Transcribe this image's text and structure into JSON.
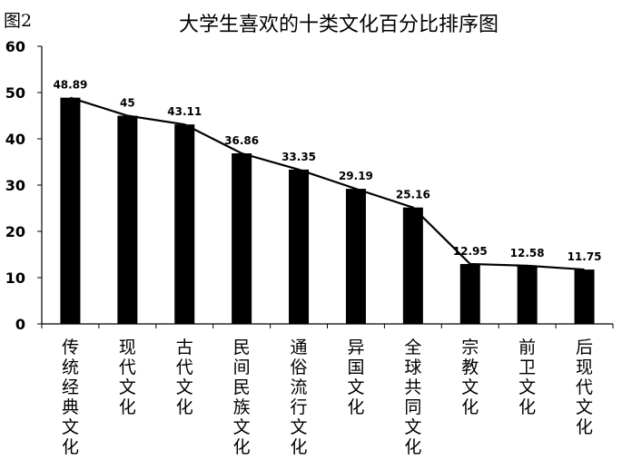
{
  "figure_label": "图2",
  "chart_data": {
    "type": "bar",
    "title": "大学生喜欢的十类文化百分比排序图",
    "categories": [
      "传统经典文化",
      "现代文化",
      "古代文化",
      "民间民族文化",
      "通俗流行文化",
      "异国文化",
      "全球共同文化",
      "宗教文化",
      "前卫文化",
      "后现代文化"
    ],
    "values": [
      48.89,
      45,
      43.11,
      36.86,
      33.35,
      29.19,
      25.16,
      12.95,
      12.58,
      11.75
    ],
    "value_labels": [
      "48.89",
      "45",
      "43.11",
      "36.86",
      "33.35",
      "29.19",
      "25.16",
      "12.95",
      "12.58",
      "11.75"
    ],
    "yticks": [
      "0",
      "10",
      "20",
      "30",
      "40",
      "50",
      "60"
    ],
    "ylim": [
      0,
      60
    ],
    "overlay_line": true,
    "grid": false,
    "legend": "none",
    "colors": {
      "bar": "#000000",
      "line": "#000000",
      "axis": "#000000"
    }
  }
}
